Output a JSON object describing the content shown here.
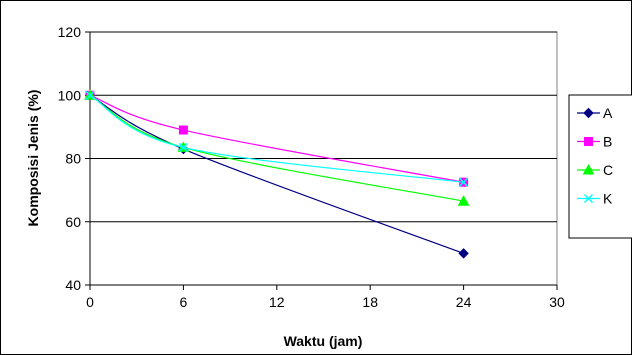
{
  "chart_data": {
    "type": "line",
    "title": "",
    "xlabel": "Waktu (jam)",
    "ylabel": "Komposisi Jenis (%)",
    "xlim": [
      0,
      30
    ],
    "ylim": [
      40,
      120
    ],
    "x_ticks": [
      "0",
      "6",
      "12",
      "18",
      "24",
      "30"
    ],
    "y_ticks": [
      "40",
      "60",
      "80",
      "100",
      "120"
    ],
    "grid": "horizontal",
    "legend": "right",
    "x": [
      0,
      6,
      24
    ],
    "series": [
      {
        "name": "A",
        "values": [
          100,
          83,
          50
        ],
        "color": "#000080",
        "marker": "diamond"
      },
      {
        "name": "B",
        "values": [
          100,
          89,
          72.5
        ],
        "color": "#FF00FF",
        "marker": "square"
      },
      {
        "name": "C",
        "values": [
          100,
          83.5,
          66.5
        ],
        "color": "#00FF00",
        "marker": "triangle"
      },
      {
        "name": "K",
        "values": [
          100,
          83.5,
          72.5
        ],
        "color": "#00FFFF",
        "marker": "x"
      }
    ]
  }
}
